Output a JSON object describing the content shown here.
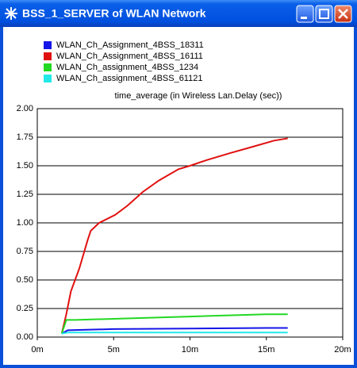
{
  "window": {
    "title": "BSS_1_SERVER of WLAN Network"
  },
  "chart_data": {
    "type": "line",
    "title": "time_average (in Wireless Lan.Delay (sec))",
    "series": [
      {
        "name": "WLAN_Ch_Assignment_4BSS_18311",
        "color": "#1515e8",
        "x": [
          1.6,
          2.0,
          5,
          10,
          15,
          16.4
        ],
        "values": [
          0.03,
          0.06,
          0.07,
          0.075,
          0.08,
          0.08
        ]
      },
      {
        "name": "WLAN_Ch_Assignment_4BSS_16111",
        "color": "#e01010",
        "x": [
          1.6,
          1.9,
          2.2,
          2.75,
          3.3,
          3.5,
          4.05,
          5.1,
          5.9,
          6.9,
          7.95,
          9.25,
          10,
          11.1,
          12.6,
          14.2,
          15.5,
          16.4
        ],
        "values": [
          0.03,
          0.2,
          0.4,
          0.6,
          0.85,
          0.93,
          1.0,
          1.07,
          1.15,
          1.27,
          1.37,
          1.47,
          1.5,
          1.55,
          1.61,
          1.67,
          1.72,
          1.74
        ]
      },
      {
        "name": "WLAN_Ch_assignment_4BSS_1234",
        "color": "#22d822",
        "x": [
          1.6,
          1.9,
          2.5,
          5,
          10,
          15,
          16.4
        ],
        "values": [
          0.03,
          0.15,
          0.15,
          0.16,
          0.18,
          0.2,
          0.2
        ]
      },
      {
        "name": "WLAN_Ch_assignment_4BSS_61121",
        "color": "#22e8e8",
        "x": [
          1.6,
          2.0,
          16.4
        ],
        "values": [
          0.03,
          0.04,
          0.04
        ]
      }
    ],
    "xlim": [
      0,
      20
    ],
    "xticks": [
      {
        "value": 0,
        "label": "0m"
      },
      {
        "value": 5,
        "label": "5m"
      },
      {
        "value": 10,
        "label": "10m"
      },
      {
        "value": 15,
        "label": "15m"
      },
      {
        "value": 20,
        "label": "20m"
      }
    ],
    "ylim": [
      0,
      2
    ],
    "yticks": [
      {
        "value": 0,
        "label": "0.00"
      },
      {
        "value": 0.25,
        "label": "0.25"
      },
      {
        "value": 0.5,
        "label": "0.50"
      },
      {
        "value": 0.75,
        "label": "0.75"
      },
      {
        "value": 1,
        "label": "1.00"
      },
      {
        "value": 1.25,
        "label": "1.25"
      },
      {
        "value": 1.5,
        "label": "1.50"
      },
      {
        "value": 1.75,
        "label": "1.75"
      },
      {
        "value": 2,
        "label": "2.00"
      }
    ],
    "grid": true
  }
}
